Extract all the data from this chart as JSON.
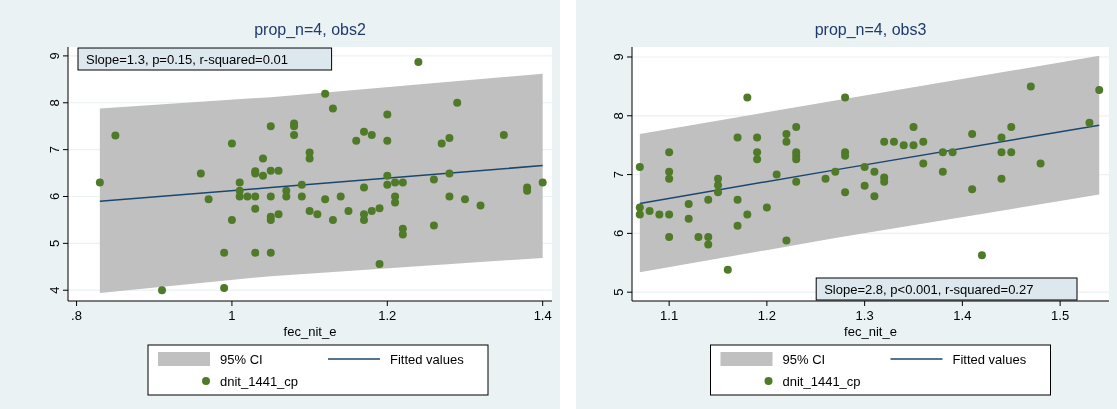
{
  "chart_data": [
    {
      "type": "scatter",
      "title": "prop_n=4, obs2",
      "xlabel": "fec_nit_e",
      "xlim": [
        0.789,
        1.412
      ],
      "ylim": [
        3.77,
        9.19
      ],
      "xticks": [
        {
          "value": 0.8,
          "label": ".8"
        },
        1,
        1.2,
        1.4
      ],
      "yticks": [
        4,
        5,
        6,
        7,
        8,
        9
      ],
      "grid": "y",
      "legend": "bottom",
      "annotations": [
        "Slope=1.3, p=0.15, r-squared=0.01"
      ],
      "series": [
        {
          "name": "95% CI",
          "type": "area",
          "color": "#c0c0c0"
        },
        {
          "name": "Fitted values",
          "type": "line",
          "color": "#1a476f",
          "x": [
            0.83,
            1.05,
            1.4
          ],
          "values": [
            5.9,
            6.19,
            6.66
          ],
          "lower": [
            3.94,
            4.3,
            4.69
          ],
          "upper": [
            7.88,
            8.12,
            8.62
          ]
        },
        {
          "name": "dnit_1441_cp",
          "type": "scatter",
          "marker": "circle",
          "color": "#4f7a28",
          "x": [
            0.83,
            0.85,
            0.91,
            0.96,
            0.97,
            0.99,
            0.99,
            1.0,
            1.0,
            1.01,
            1.01,
            1.01,
            1.02,
            1.03,
            1.03,
            1.03,
            1.03,
            1.03,
            1.04,
            1.04,
            1.05,
            1.05,
            1.05,
            1.05,
            1.05,
            1.05,
            1.06,
            1.06,
            1.07,
            1.07,
            1.08,
            1.08,
            1.08,
            1.09,
            1.09,
            1.1,
            1.1,
            1.1,
            1.11,
            1.12,
            1.12,
            1.13,
            1.13,
            1.14,
            1.15,
            1.16,
            1.17,
            1.17,
            1.17,
            1.17,
            1.18,
            1.18,
            1.19,
            1.19,
            1.2,
            1.2,
            1.2,
            1.2,
            1.21,
            1.21,
            1.21,
            1.22,
            1.22,
            1.22,
            1.24,
            1.26,
            1.26,
            1.27,
            1.28,
            1.28,
            1.28,
            1.29,
            1.3,
            1.32,
            1.35,
            1.38,
            1.38,
            1.4
          ],
          "values": [
            6.3,
            7.3,
            4.0,
            6.49,
            5.94,
            4.8,
            4.05,
            7.13,
            5.5,
            6.3,
            6.12,
            6.0,
            6.0,
            6.54,
            6.49,
            6.0,
            5.74,
            4.8,
            6.81,
            6.44,
            7.5,
            6.55,
            6.0,
            5.57,
            5.5,
            4.8,
            6.55,
            5.62,
            6.12,
            6.0,
            7.56,
            7.5,
            7.31,
            6.25,
            6.0,
            6.94,
            6.81,
            5.69,
            5.62,
            8.19,
            5.94,
            7.88,
            5.5,
            6.0,
            5.69,
            7.19,
            7.38,
            6.19,
            5.62,
            5.5,
            7.31,
            5.69,
            5.75,
            4.56,
            7.75,
            7.19,
            6.44,
            6.25,
            6.3,
            6.0,
            5.87,
            6.3,
            5.31,
            5.19,
            8.87,
            6.36,
            5.38,
            7.13,
            7.25,
            6.49,
            6.0,
            8.0,
            5.94,
            5.81,
            7.31,
            6.19,
            6.12,
            6.3
          ]
        }
      ]
    },
    {
      "type": "scatter",
      "title": "prop_n=4, obs3",
      "xlabel": "fec_nit_e",
      "xlim": [
        1.062,
        1.55
      ],
      "ylim": [
        4.85,
        9.17
      ],
      "xticks": [
        1.1,
        1.2,
        1.3,
        1.4,
        1.5
      ],
      "yticks": [
        5,
        6,
        7,
        8,
        9
      ],
      "grid": "y",
      "legend": "bottom",
      "annotations": [
        "Slope=2.8, p<0.001, r-squared=0.27"
      ],
      "series": [
        {
          "name": "95% CI",
          "type": "area",
          "color": "#c0c0c0"
        },
        {
          "name": "Fitted values",
          "type": "line",
          "color": "#1a476f",
          "x": [
            1.07,
            1.27,
            1.54
          ],
          "values": [
            6.51,
            7.08,
            7.84
          ],
          "lower": [
            5.34,
            5.92,
            6.66
          ],
          "upper": [
            7.69,
            8.26,
            9.02
          ]
        },
        {
          "name": "dnit_1441_cp",
          "type": "scatter",
          "marker": "circle",
          "color": "#4f7a28",
          "x": [
            1.07,
            1.07,
            1.07,
            1.08,
            1.09,
            1.1,
            1.1,
            1.1,
            1.1,
            1.1,
            1.12,
            1.12,
            1.13,
            1.14,
            1.14,
            1.14,
            1.15,
            1.15,
            1.15,
            1.16,
            1.17,
            1.17,
            1.17,
            1.18,
            1.18,
            1.19,
            1.19,
            1.19,
            1.2,
            1.21,
            1.22,
            1.22,
            1.22,
            1.23,
            1.23,
            1.23,
            1.23,
            1.23,
            1.26,
            1.27,
            1.28,
            1.28,
            1.28,
            1.28,
            1.3,
            1.3,
            1.31,
            1.31,
            1.32,
            1.32,
            1.32,
            1.33,
            1.34,
            1.35,
            1.35,
            1.36,
            1.36,
            1.38,
            1.38,
            1.39,
            1.41,
            1.41,
            1.42,
            1.44,
            1.44,
            1.44,
            1.45,
            1.45,
            1.47,
            1.48,
            1.53,
            1.54
          ],
          "values": [
            7.13,
            6.44,
            6.32,
            6.38,
            6.32,
            7.38,
            7.05,
            6.93,
            6.32,
            5.94,
            6.5,
            6.25,
            5.94,
            6.57,
            5.94,
            5.81,
            6.93,
            6.82,
            6.7,
            5.38,
            7.63,
            6.57,
            6.13,
            8.31,
            6.32,
            7.63,
            7.38,
            7.26,
            6.44,
            7.0,
            7.69,
            7.56,
            5.88,
            7.81,
            7.38,
            7.32,
            7.26,
            6.88,
            6.93,
            7.05,
            8.31,
            7.38,
            7.32,
            6.7,
            7.13,
            6.81,
            7.05,
            6.63,
            6.95,
            6.88,
            7.56,
            7.56,
            7.5,
            7.81,
            7.5,
            7.56,
            7.19,
            7.38,
            7.05,
            7.38,
            7.69,
            6.75,
            5.63,
            7.63,
            7.38,
            6.93,
            7.81,
            7.38,
            8.5,
            7.19,
            7.88,
            8.44
          ]
        }
      ]
    }
  ]
}
